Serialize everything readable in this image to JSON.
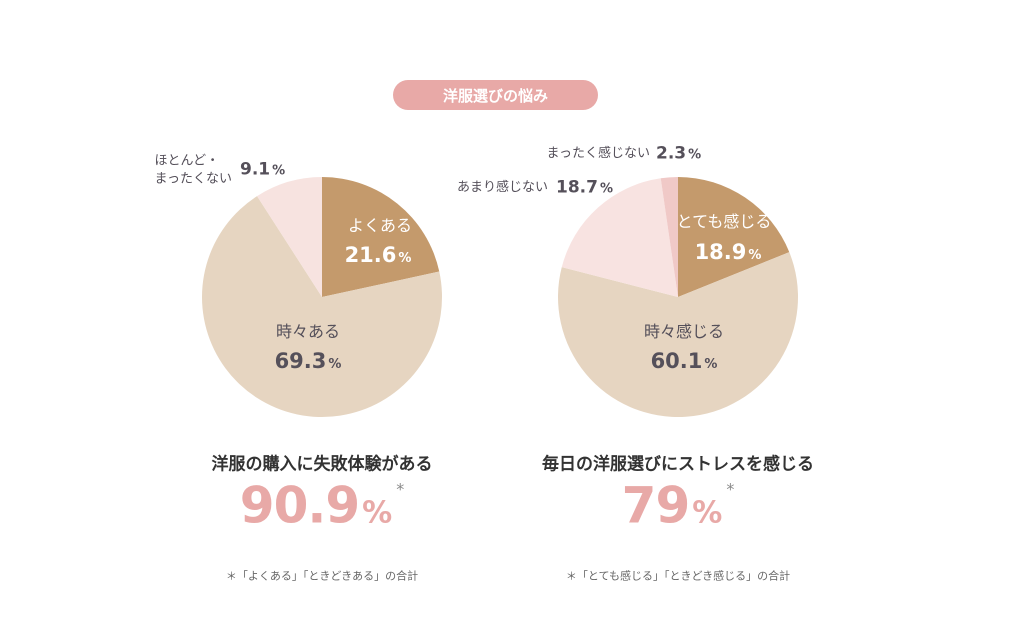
{
  "header": {
    "title": "洋服選びの悩み"
  },
  "chart_data": [
    {
      "type": "pie",
      "categories": [
        "よくある",
        "時々ある",
        "ほとんど・\nまったくない"
      ],
      "values": [
        21.6,
        69.3,
        9.1
      ],
      "unit": "%",
      "colors": [
        "#c49a6c",
        "#e6d5c1",
        "#f7e3e0"
      ],
      "summary": {
        "label": "洋服の購入に失敗体験がある",
        "value": 90.9,
        "unit": "%",
        "mark": "*"
      },
      "note": "＊「よくある」「ときどきある」の合計"
    },
    {
      "type": "pie",
      "categories": [
        "とても感じる",
        "時々感じる",
        "あまり感じない",
        "まったく感じない"
      ],
      "values": [
        18.9,
        60.1,
        18.7,
        2.3
      ],
      "unit": "%",
      "colors": [
        "#c49a6c",
        "#e6d5c1",
        "#f8e3e1",
        "#f0c9c7"
      ],
      "summary": {
        "label": "毎日の洋服選びにストレスを感じる",
        "value": 79,
        "unit": "%",
        "mark": "*"
      },
      "note": "＊「とても感じる」「ときどき感じる」の合計"
    }
  ]
}
